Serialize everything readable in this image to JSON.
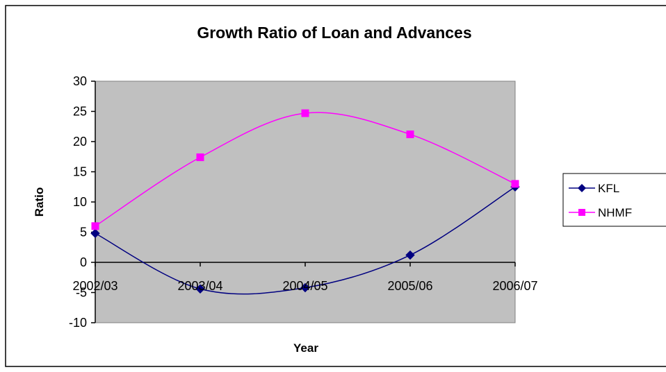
{
  "chart_data": {
    "type": "line",
    "title": "Growth Ratio of Loan and Advances",
    "xlabel": "Year",
    "ylabel": "Ratio",
    "categories": [
      "2002/03",
      "2003/04",
      "2004/05",
      "2005/06",
      "2006/07"
    ],
    "ylim": [
      -10,
      30
    ],
    "yticks": [
      -10,
      -5,
      0,
      5,
      10,
      15,
      20,
      25,
      30
    ],
    "grid": false,
    "smooth": true,
    "legend_position": "right",
    "plot_background": "#c0c0c0",
    "series": [
      {
        "name": "KFL",
        "values": [
          4.8,
          -4.4,
          -4.2,
          1.2,
          12.5
        ],
        "color": "#000080",
        "marker": "diamond"
      },
      {
        "name": "NHMF",
        "values": [
          6.0,
          17.4,
          24.7,
          21.2,
          13.0
        ],
        "color": "#ff00ff",
        "marker": "square"
      }
    ]
  }
}
